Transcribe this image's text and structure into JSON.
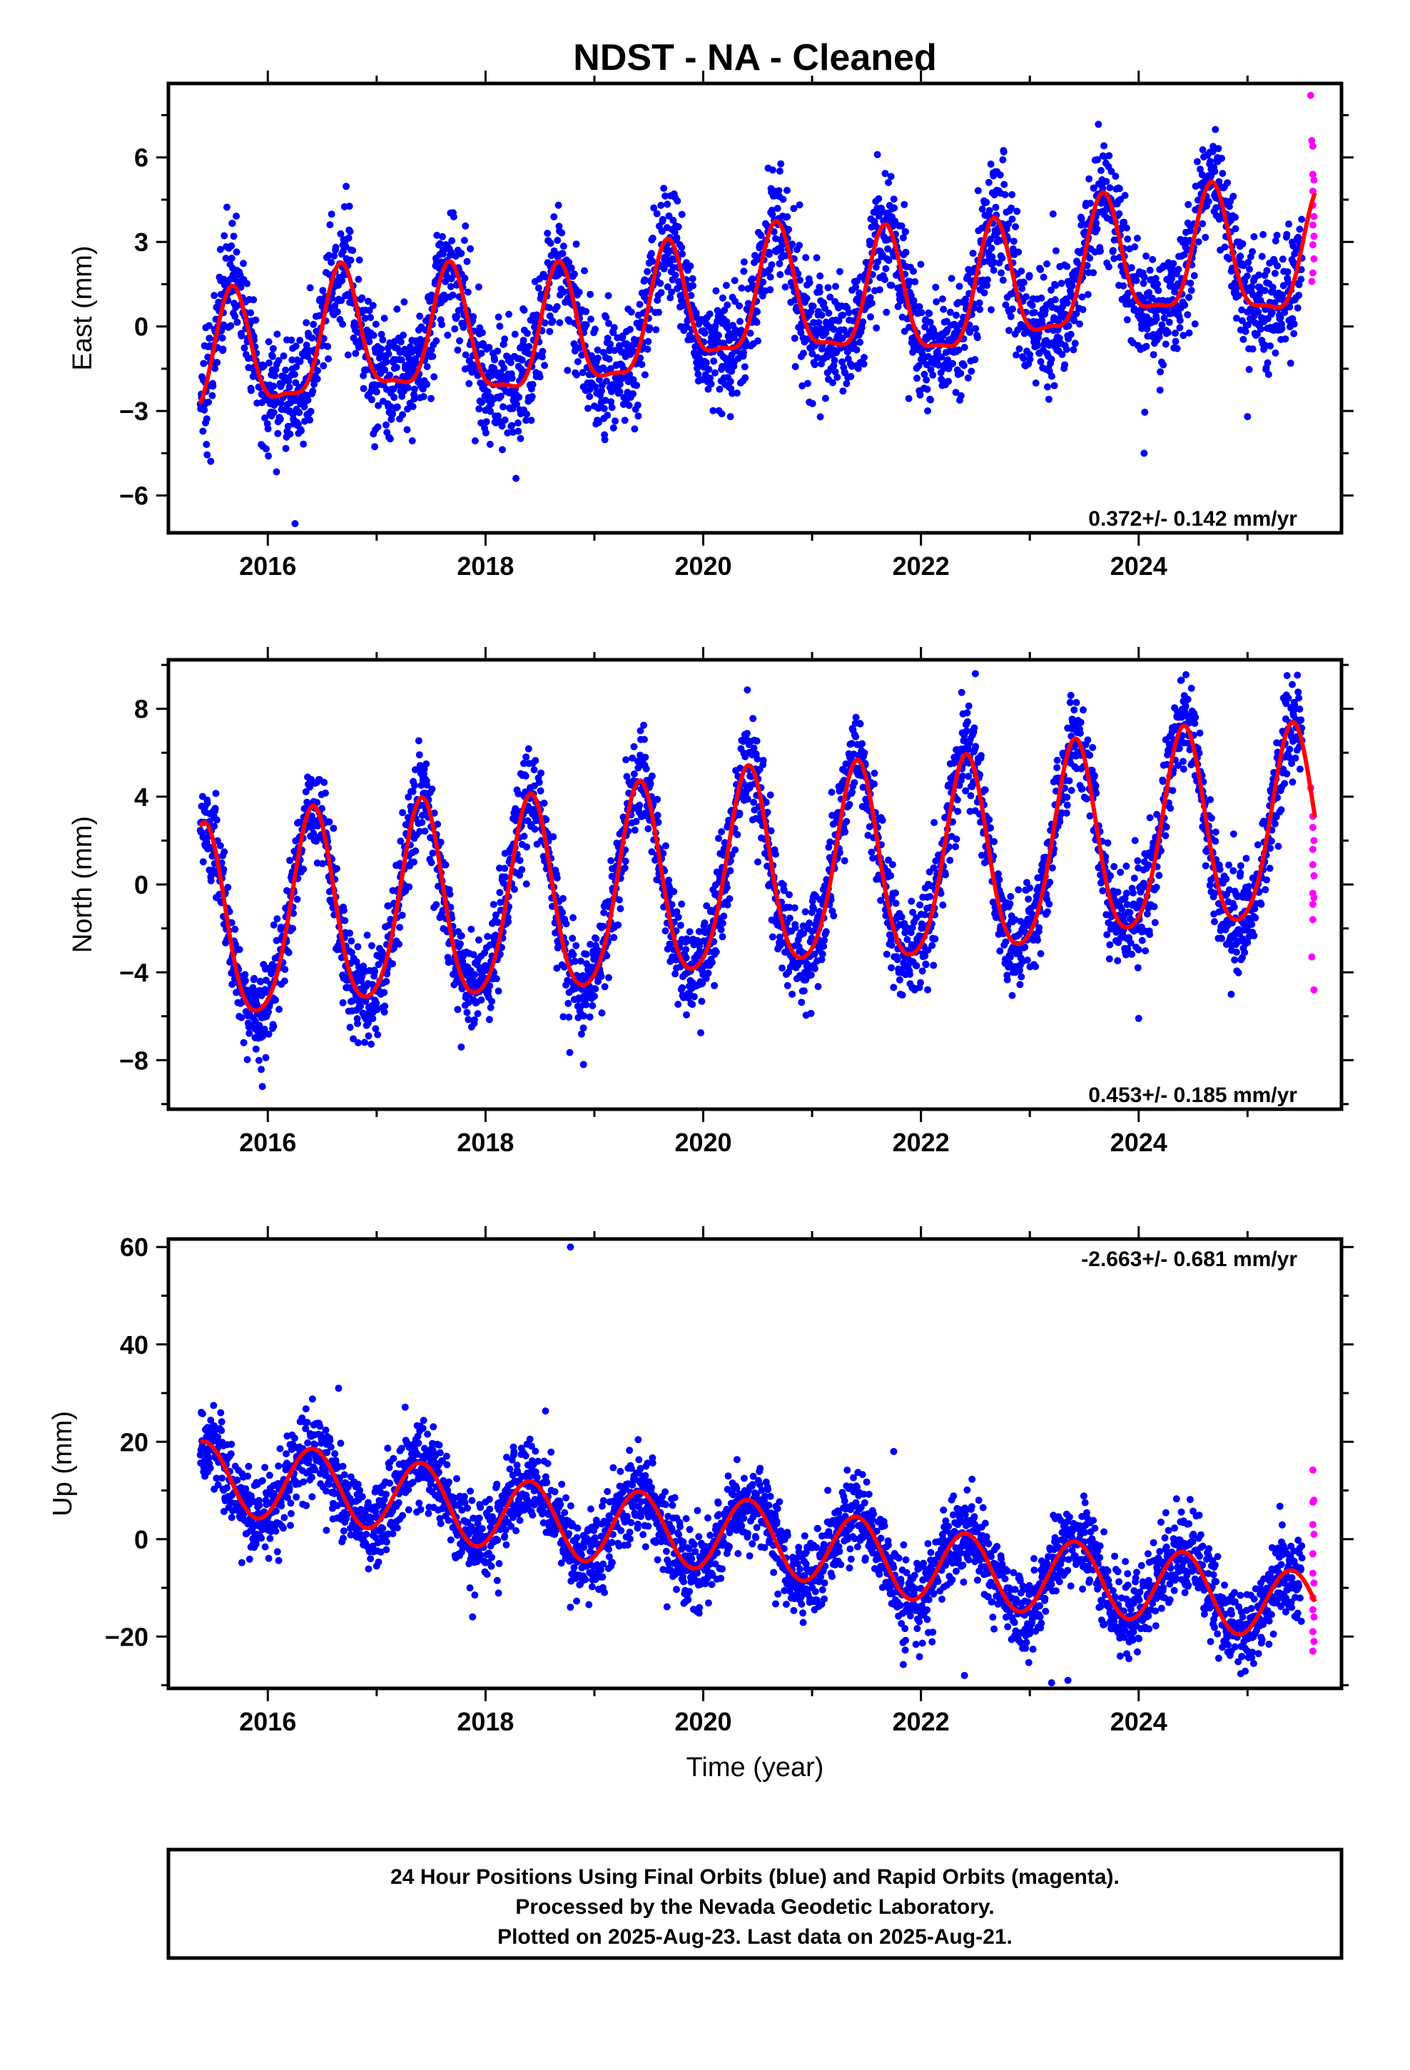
{
  "chart_data": [
    {
      "type": "scatter",
      "title": "NDST  - NA - Cleaned",
      "ylabel": "East (mm)",
      "xlabel": "",
      "xlim": [
        2015.1,
        2025.85
      ],
      "ylim": [
        -7.3,
        8.6
      ],
      "xticks": [
        2016,
        2018,
        2020,
        2022,
        2024
      ],
      "yticks": [
        -6,
        -3,
        0,
        3,
        6
      ],
      "rate_text": "0.372+/- 0.142 mm/yr",
      "rate_position": "bottom-right",
      "grid": false,
      "series": [
        {
          "name": "Final Orbits",
          "color": "#0000ff",
          "base": {
            "trend": 0.372,
            "trend_ref": 2020.5,
            "offset": 0.55,
            "annual_sin": -1.9,
            "annual_cos": -1.0,
            "semi_sin": 0.55,
            "semi_cos": -0.35,
            "wander": 0.35
          },
          "scatter": 1.05,
          "x_range": [
            2015.38,
            2025.5
          ],
          "outliers": [
            [
              2016.25,
              -7.0
            ],
            [
              2020.25,
              -3.2
            ],
            [
              2021.6,
              6.1
            ],
            [
              2023.55,
              3.6
            ],
            [
              2024.05,
              -4.5
            ],
            [
              2025.0,
              -3.2
            ]
          ]
        },
        {
          "name": "Rapid Orbits",
          "color": "#ff00ff",
          "points": [
            [
              2025.58,
              8.2
            ],
            [
              2025.59,
              6.6
            ],
            [
              2025.6,
              6.4
            ],
            [
              2025.6,
              5.4
            ],
            [
              2025.61,
              5.2
            ],
            [
              2025.6,
              4.8
            ],
            [
              2025.6,
              4.3
            ],
            [
              2025.61,
              3.9
            ],
            [
              2025.6,
              3.6
            ],
            [
              2025.61,
              3.2
            ],
            [
              2025.6,
              2.9
            ],
            [
              2025.61,
              2.4
            ],
            [
              2025.6,
              1.9
            ],
            [
              2025.59,
              1.6
            ]
          ]
        },
        {
          "name": "Fit",
          "color": "#ff0000",
          "curve": {
            "trend": 0.372,
            "trend_ref": 2020.5,
            "offset": 0.55,
            "annual_sin": -1.9,
            "annual_cos": -1.0,
            "semi_sin": 0.55,
            "semi_cos": -0.35,
            "wander": 0.35
          },
          "x_range": [
            2015.38,
            2025.62
          ]
        }
      ]
    },
    {
      "type": "scatter",
      "title": "",
      "ylabel": "North (mm)",
      "xlabel": "",
      "xlim": [
        2015.1,
        2025.85
      ],
      "ylim": [
        -10.2,
        10.2
      ],
      "xticks": [
        2016,
        2018,
        2020,
        2022,
        2024
      ],
      "yticks": [
        -8,
        -4,
        0,
        4,
        8
      ],
      "rate_text": "0.453+/- 0.185 mm/yr",
      "rate_position": "bottom-right",
      "grid": false,
      "series": [
        {
          "name": "Final Orbits",
          "color": "#0000ff",
          "base": {
            "trend": 0.453,
            "trend_ref": 2020.5,
            "offset": 0.2,
            "annual_sin": 2.35,
            "annual_cos": -3.8,
            "semi_sin": -0.5,
            "semi_cos": 0.35,
            "wander": 0.2
          },
          "scatter": 1.1,
          "x_range": [
            2015.38,
            2025.5
          ],
          "outliers": [
            [
              2015.95,
              -9.2
            ],
            [
              2018.9,
              -8.2
            ],
            [
              2022.5,
              9.6
            ],
            [
              2024.0,
              -6.1
            ],
            [
              2024.85,
              -5.0
            ]
          ]
        },
        {
          "name": "Rapid Orbits",
          "color": "#ff00ff",
          "points": [
            [
              2025.58,
              4.4
            ],
            [
              2025.6,
              3.1
            ],
            [
              2025.6,
              2.6
            ],
            [
              2025.61,
              2.0
            ],
            [
              2025.6,
              1.6
            ],
            [
              2025.6,
              0.9
            ],
            [
              2025.61,
              0.4
            ],
            [
              2025.6,
              -0.4
            ],
            [
              2025.61,
              -0.6
            ],
            [
              2025.6,
              -0.9
            ],
            [
              2025.6,
              -1.6
            ],
            [
              2025.59,
              -3.3
            ],
            [
              2025.61,
              -4.8
            ]
          ]
        },
        {
          "name": "Fit",
          "color": "#ff0000",
          "curve": {
            "trend": 0.453,
            "trend_ref": 2020.5,
            "offset": 0.2,
            "annual_sin": 2.35,
            "annual_cos": -3.8,
            "semi_sin": -0.5,
            "semi_cos": 0.35,
            "wander": 0.2
          },
          "x_range": [
            2015.38,
            2025.62
          ]
        }
      ]
    },
    {
      "type": "scatter",
      "title": "",
      "ylabel": "Up (mm)",
      "xlabel": "Time (year)",
      "xlim": [
        2015.1,
        2025.85
      ],
      "ylim": [
        -30.5,
        61.5
      ],
      "xticks": [
        2016,
        2018,
        2020,
        2022,
        2024
      ],
      "yticks": [
        -20,
        0,
        20,
        40,
        60
      ],
      "rate_text": "-2.663+/- 0.681 mm/yr",
      "rate_position": "top-right",
      "grid": false,
      "series": [
        {
          "name": "Final Orbits",
          "color": "#0000ff",
          "base": {
            "trend": -2.663,
            "trend_ref": 2020.5,
            "offset": -0.5,
            "annual_sin": 4.0,
            "annual_cos": -6.4,
            "semi_sin": 0.0,
            "semi_cos": 0.0,
            "wander": 0.8
          },
          "scatter": 4.3,
          "x_range": [
            2015.38,
            2025.5
          ],
          "outliers": [
            [
              2018.78,
              60.0
            ],
            [
              2016.65,
              31.0
            ],
            [
              2022.4,
              -28.0
            ],
            [
              2023.2,
              -29.5
            ],
            [
              2023.35,
              -29.0
            ],
            [
              2021.75,
              18.0
            ]
          ]
        },
        {
          "name": "Rapid Orbits",
          "color": "#ff00ff",
          "points": [
            [
              2025.6,
              14.2
            ],
            [
              2025.61,
              8.0
            ],
            [
              2025.6,
              7.6
            ],
            [
              2025.6,
              3.0
            ],
            [
              2025.61,
              1.0
            ],
            [
              2025.6,
              -3.0
            ],
            [
              2025.6,
              -7.0
            ],
            [
              2025.61,
              -9.0
            ],
            [
              2025.6,
              -12.0
            ],
            [
              2025.6,
              -14.5
            ],
            [
              2025.61,
              -16.0
            ],
            [
              2025.6,
              -19.0
            ],
            [
              2025.61,
              -21.0
            ],
            [
              2025.6,
              -23.0
            ]
          ]
        },
        {
          "name": "Fit",
          "color": "#ff0000",
          "curve": {
            "trend": -2.663,
            "trend_ref": 2020.5,
            "offset": -0.5,
            "annual_sin": 4.0,
            "annual_cos": -6.4,
            "semi_sin": 0.0,
            "semi_cos": 0.0,
            "wander": 0.8
          },
          "x_range": [
            2015.38,
            2025.62
          ]
        }
      ]
    }
  ],
  "figure_title": "NDST  - NA - Cleaned",
  "caption": {
    "line1": "24 Hour Positions Using Final Orbits (blue) and Rapid Orbits (magenta).",
    "line2": "Processed by the Nevada Geodetic Laboratory.",
    "line3": "Plotted on 2025-Aug-23. Last data on 2025-Aug-21."
  }
}
